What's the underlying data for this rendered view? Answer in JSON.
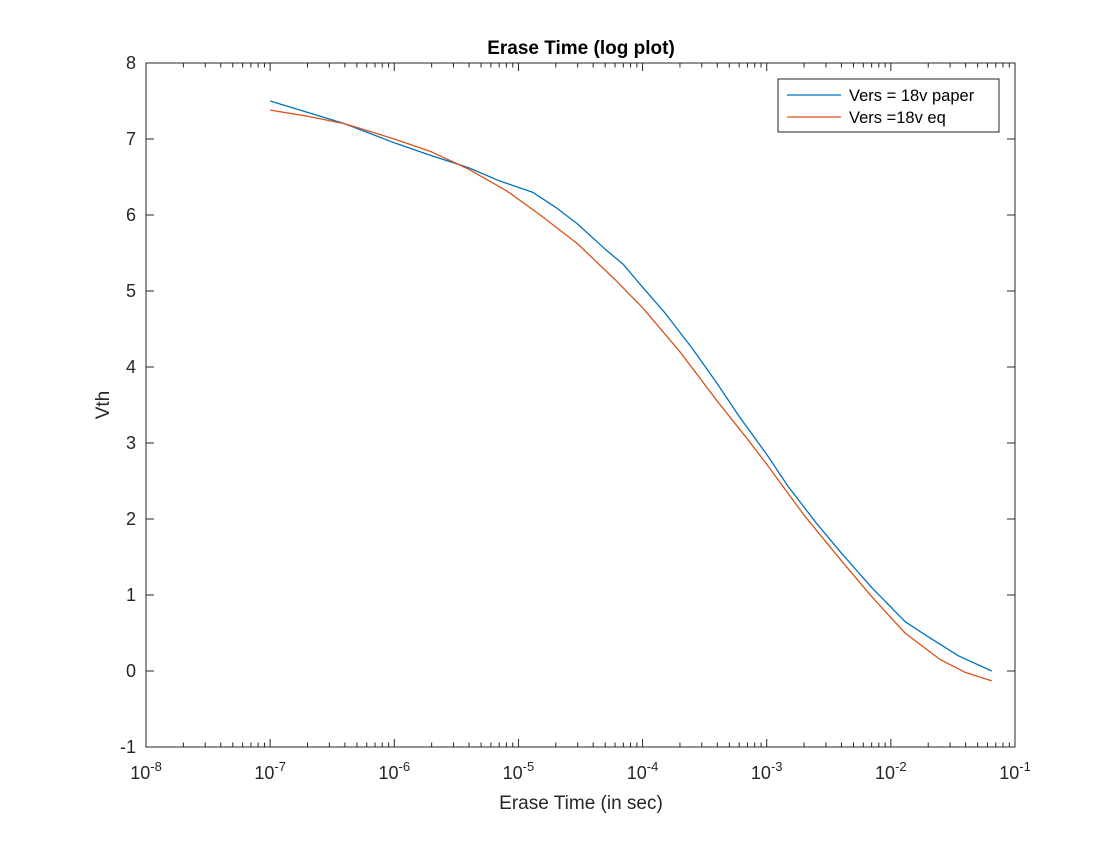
{
  "chart_data": {
    "type": "line",
    "title": "Erase Time (log plot)",
    "xlabel": "Erase Time (in sec)",
    "ylabel": "Vth",
    "xscale": "log",
    "xlim": [
      1e-08,
      0.1
    ],
    "ylim": [
      -1,
      8
    ],
    "grid": false,
    "legend_position": "top-right",
    "x_ticks": [
      {
        "base": "10",
        "exp": "-8",
        "value": 1e-08
      },
      {
        "base": "10",
        "exp": "-7",
        "value": 1e-07
      },
      {
        "base": "10",
        "exp": "-6",
        "value": 1e-06
      },
      {
        "base": "10",
        "exp": "-5",
        "value": 1e-05
      },
      {
        "base": "10",
        "exp": "-4",
        "value": 0.0001
      },
      {
        "base": "10",
        "exp": "-3",
        "value": 0.001
      },
      {
        "base": "10",
        "exp": "-2",
        "value": 0.01
      },
      {
        "base": "10",
        "exp": "-1",
        "value": 0.1
      }
    ],
    "y_ticks": [
      "-1",
      "0",
      "1",
      "2",
      "3",
      "4",
      "5",
      "6",
      "7",
      "8"
    ],
    "series": [
      {
        "name": "Vers = 18v paper",
        "color": "#0072BD",
        "points": [
          [
            1e-07,
            7.5
          ],
          [
            2e-07,
            7.35
          ],
          [
            4e-07,
            7.2
          ],
          [
            1e-06,
            6.95
          ],
          [
            2e-06,
            6.78
          ],
          [
            4e-06,
            6.62
          ],
          [
            7e-06,
            6.45
          ],
          [
            1.3e-05,
            6.3
          ],
          [
            2e-05,
            6.1
          ],
          [
            3e-05,
            5.88
          ],
          [
            5e-05,
            5.55
          ],
          [
            7e-05,
            5.35
          ],
          [
            0.0001,
            5.05
          ],
          [
            0.00015,
            4.72
          ],
          [
            0.00025,
            4.25
          ],
          [
            0.0004,
            3.78
          ],
          [
            0.0006,
            3.35
          ],
          [
            0.001,
            2.85
          ],
          [
            0.0015,
            2.42
          ],
          [
            0.0025,
            1.95
          ],
          [
            0.004,
            1.55
          ],
          [
            0.007,
            1.1
          ],
          [
            0.013,
            0.65
          ],
          [
            0.02,
            0.45
          ],
          [
            0.035,
            0.2
          ],
          [
            0.065,
            0.0
          ]
        ]
      },
      {
        "name": "Vers =18v eq",
        "color": "#D95319",
        "points": [
          [
            1e-07,
            7.38
          ],
          [
            2e-07,
            7.3
          ],
          [
            4e-07,
            7.2
          ],
          [
            1e-06,
            7.0
          ],
          [
            2e-06,
            6.83
          ],
          [
            4e-06,
            6.6
          ],
          [
            8e-06,
            6.32
          ],
          [
            1.5e-05,
            6.0
          ],
          [
            3e-05,
            5.62
          ],
          [
            6e-05,
            5.15
          ],
          [
            0.0001,
            4.78
          ],
          [
            0.0002,
            4.2
          ],
          [
            0.0004,
            3.55
          ],
          [
            0.0007,
            3.05
          ],
          [
            0.001,
            2.72
          ],
          [
            0.002,
            2.05
          ],
          [
            0.004,
            1.45
          ],
          [
            0.007,
            0.98
          ],
          [
            0.013,
            0.5
          ],
          [
            0.025,
            0.15
          ],
          [
            0.04,
            -0.02
          ],
          [
            0.065,
            -0.13
          ]
        ]
      }
    ]
  }
}
